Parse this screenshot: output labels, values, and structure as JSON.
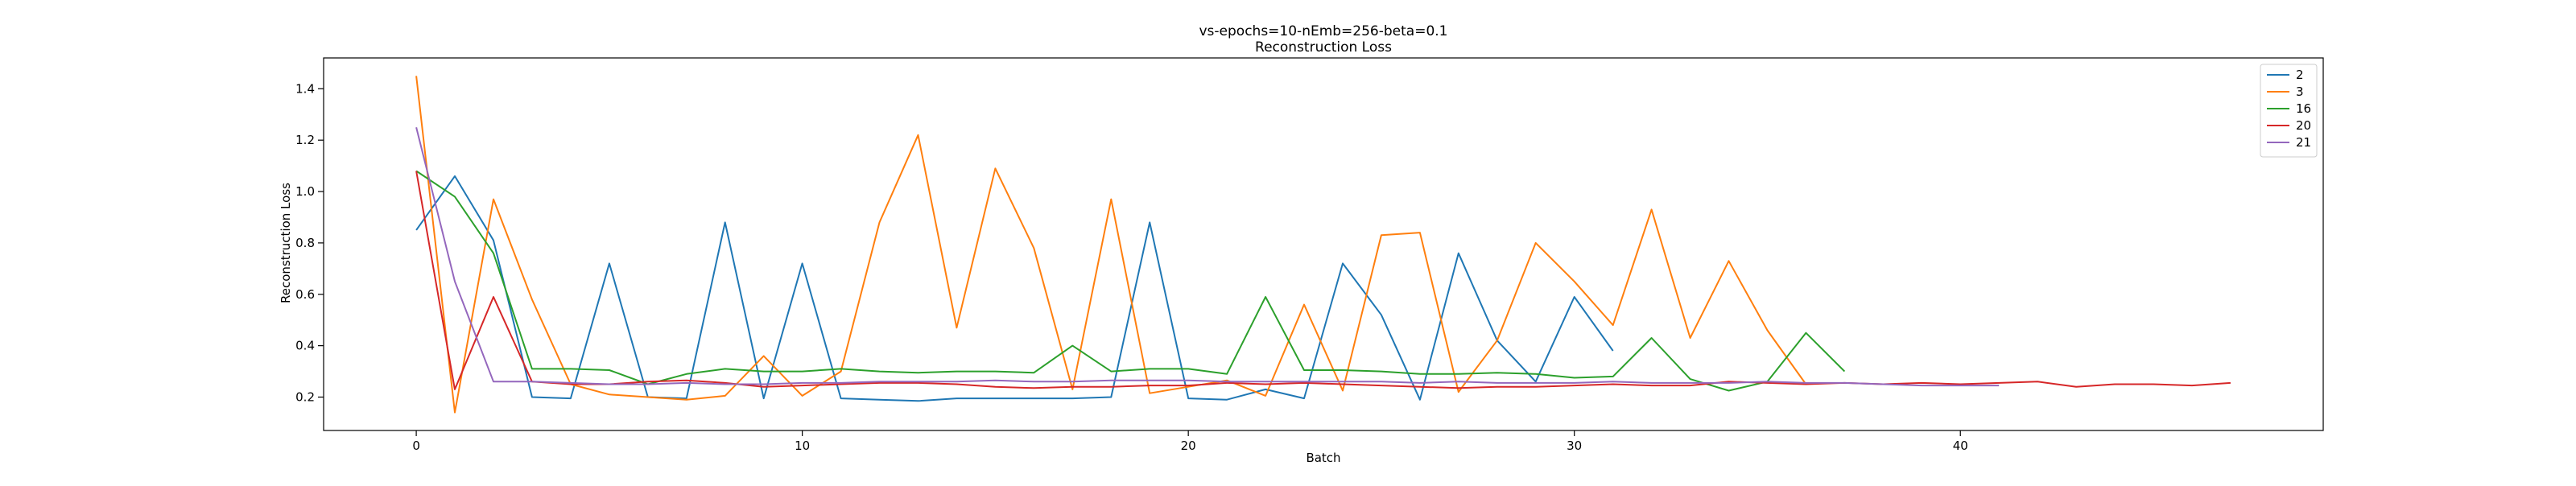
{
  "chart_data": {
    "type": "line",
    "title": "vs-epochs=10-nEmb=256-beta=0.1",
    "subtitle": "Reconstruction Loss",
    "xlabel": "Batch",
    "ylabel": "Reconstruction Loss",
    "xlim": [
      -2.4,
      49.4
    ],
    "ylim": [
      0.07,
      1.52
    ],
    "xticks": [
      0,
      10,
      20,
      30,
      40
    ],
    "yticks": [
      0.2,
      0.4,
      0.6,
      0.8,
      1.0,
      1.2,
      1.4
    ],
    "grid": false,
    "legend_position": "top-right",
    "series": [
      {
        "name": "2",
        "color": "#1f77b4",
        "x": [
          0,
          1,
          2,
          3,
          4,
          5,
          6,
          7,
          8,
          9,
          10,
          11,
          12,
          13,
          14,
          15,
          16,
          17,
          18,
          19,
          20,
          21,
          22,
          23,
          24,
          25,
          26,
          27,
          28,
          29,
          30,
          31
        ],
        "values": [
          0.85,
          1.06,
          0.81,
          0.2,
          0.195,
          0.72,
          0.2,
          0.195,
          0.88,
          0.195,
          0.72,
          0.195,
          0.19,
          0.185,
          0.195,
          0.195,
          0.195,
          0.195,
          0.2,
          0.88,
          0.195,
          0.19,
          0.23,
          0.195,
          0.72,
          0.52,
          0.19,
          0.76,
          0.42,
          0.26,
          0.59,
          0.38
        ]
      },
      {
        "name": "3",
        "color": "#ff7f0e",
        "x": [
          0,
          1,
          2,
          3,
          4,
          5,
          6,
          7,
          8,
          9,
          10,
          11,
          12,
          13,
          14,
          15,
          16,
          17,
          18,
          19,
          20,
          21,
          22,
          23,
          24,
          25,
          26,
          27,
          28,
          29,
          30,
          31,
          32,
          33,
          34,
          35,
          36
        ],
        "values": [
          1.45,
          0.14,
          0.97,
          0.58,
          0.25,
          0.21,
          0.2,
          0.19,
          0.205,
          0.36,
          0.205,
          0.3,
          0.88,
          1.22,
          0.47,
          1.09,
          0.78,
          0.23,
          0.97,
          0.215,
          0.24,
          0.265,
          0.205,
          0.56,
          0.225,
          0.83,
          0.84,
          0.22,
          0.42,
          0.8,
          0.65,
          0.48,
          0.93,
          0.43,
          0.73,
          0.46,
          0.25
        ]
      },
      {
        "name": "16",
        "color": "#2ca02c",
        "x": [
          0,
          1,
          2,
          3,
          4,
          5,
          6,
          7,
          8,
          9,
          10,
          11,
          12,
          13,
          14,
          15,
          16,
          17,
          18,
          19,
          20,
          21,
          22,
          23,
          24,
          25,
          26,
          27,
          28,
          29,
          30,
          31,
          32,
          33,
          34,
          35,
          36,
          37
        ],
        "values": [
          1.08,
          0.98,
          0.76,
          0.31,
          0.31,
          0.305,
          0.25,
          0.29,
          0.31,
          0.3,
          0.3,
          0.31,
          0.3,
          0.295,
          0.3,
          0.3,
          0.295,
          0.4,
          0.3,
          0.31,
          0.31,
          0.29,
          0.59,
          0.305,
          0.305,
          0.3,
          0.29,
          0.29,
          0.295,
          0.29,
          0.275,
          0.28,
          0.43,
          0.27,
          0.225,
          0.26,
          0.45,
          0.3
        ]
      },
      {
        "name": "20",
        "color": "#d62728",
        "x": [
          0,
          1,
          2,
          3,
          4,
          5,
          6,
          7,
          8,
          9,
          10,
          11,
          12,
          13,
          14,
          15,
          16,
          17,
          18,
          19,
          20,
          21,
          22,
          23,
          24,
          25,
          26,
          27,
          28,
          29,
          30,
          31,
          32,
          33,
          34,
          35,
          36,
          37,
          38,
          39,
          40,
          41,
          42,
          43,
          44,
          45,
          46,
          47
        ],
        "values": [
          1.08,
          0.23,
          0.59,
          0.26,
          0.25,
          0.25,
          0.26,
          0.265,
          0.255,
          0.24,
          0.245,
          0.25,
          0.255,
          0.255,
          0.25,
          0.24,
          0.235,
          0.24,
          0.24,
          0.245,
          0.245,
          0.255,
          0.25,
          0.255,
          0.25,
          0.245,
          0.24,
          0.235,
          0.24,
          0.24,
          0.245,
          0.25,
          0.245,
          0.245,
          0.26,
          0.255,
          0.25,
          0.255,
          0.25,
          0.255,
          0.25,
          0.255,
          0.26,
          0.24,
          0.25,
          0.25,
          0.245,
          0.255
        ]
      },
      {
        "name": "21",
        "color": "#9467bd",
        "x": [
          0,
          1,
          2,
          3,
          4,
          5,
          6,
          7,
          8,
          9,
          10,
          11,
          12,
          13,
          14,
          15,
          16,
          17,
          18,
          19,
          20,
          21,
          22,
          23,
          24,
          25,
          26,
          27,
          28,
          29,
          30,
          31,
          32,
          33,
          34,
          35,
          36,
          37,
          38,
          39,
          40,
          41
        ],
        "values": [
          1.25,
          0.65,
          0.26,
          0.26,
          0.255,
          0.25,
          0.25,
          0.255,
          0.25,
          0.25,
          0.255,
          0.255,
          0.26,
          0.26,
          0.26,
          0.265,
          0.26,
          0.26,
          0.265,
          0.265,
          0.265,
          0.26,
          0.26,
          0.26,
          0.26,
          0.26,
          0.255,
          0.26,
          0.255,
          0.255,
          0.255,
          0.26,
          0.255,
          0.255,
          0.255,
          0.26,
          0.255,
          0.255,
          0.25,
          0.245,
          0.245,
          0.245
        ]
      }
    ]
  }
}
